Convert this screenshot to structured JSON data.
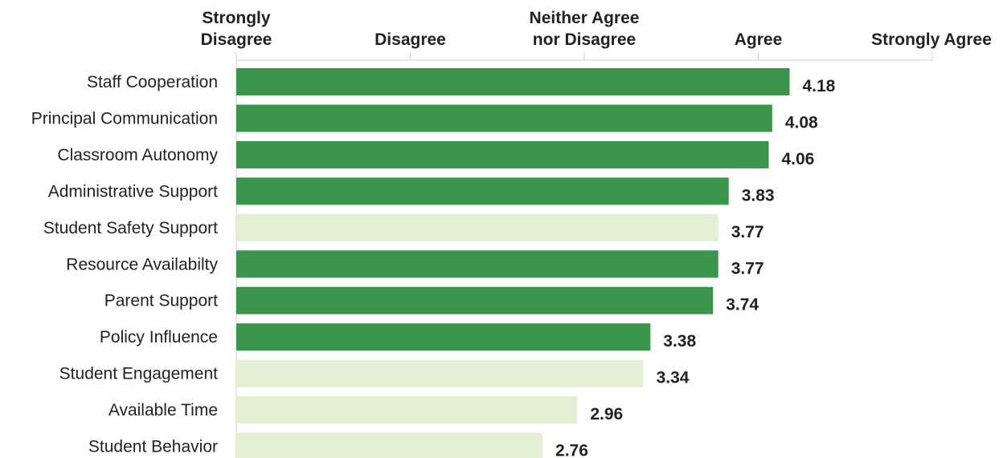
{
  "chart_data": {
    "type": "bar",
    "orientation": "horizontal",
    "xlim": [
      1,
      5
    ],
    "x_ticks": [
      {
        "value": 1,
        "lines": [
          "Strongly",
          "Disagree"
        ]
      },
      {
        "value": 2,
        "lines": [
          "Disagree"
        ]
      },
      {
        "value": 3,
        "lines": [
          "Neither Agree",
          "nor Disagree"
        ]
      },
      {
        "value": 4,
        "lines": [
          "Agree"
        ]
      },
      {
        "value": 5,
        "lines": [
          "Strongly Agree"
        ]
      }
    ],
    "categories": [
      "Staff Cooperation",
      "Principal Communication",
      "Classroom Autonomy",
      "Administrative Support",
      "Student Safety Support",
      "Resource Availabilty",
      "Parent Support",
      "Policy Influence",
      "Student Engagement",
      "Available Time",
      "Student Behavior"
    ],
    "values": [
      4.18,
      4.08,
      4.06,
      3.83,
      3.77,
      3.77,
      3.74,
      3.38,
      3.34,
      2.96,
      2.76
    ],
    "value_labels": [
      "4.18",
      "4.08",
      "4.06",
      "3.83",
      "3.77",
      "3.77",
      "3.74",
      "3.38",
      "3.34",
      "2.96",
      "2.76"
    ],
    "highlighted": [
      true,
      true,
      true,
      true,
      false,
      true,
      true,
      true,
      false,
      false,
      false
    ],
    "colors": {
      "highlight": "#3a944a",
      "muted": "#e2efd2",
      "axis": "#cfcfcf",
      "text": "#222222"
    },
    "grid": false,
    "legend": "none"
  }
}
